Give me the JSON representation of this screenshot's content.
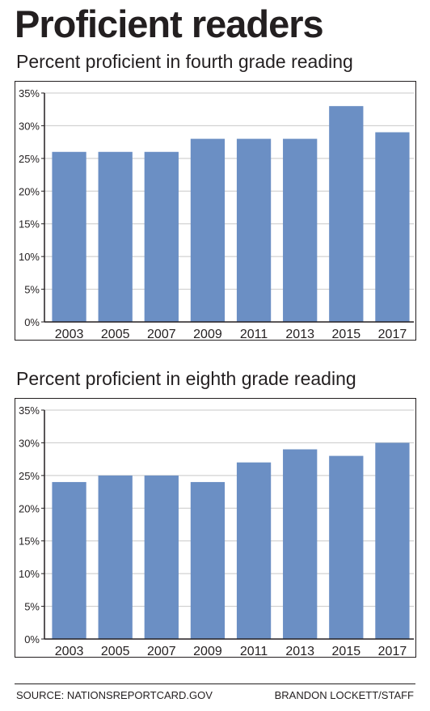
{
  "page": {
    "title": "Proficient readers",
    "source": "SOURCE: NATIONSREPORTCARD.GOV",
    "credit": "BRANDON LOCKETT/STAFF"
  },
  "colors": {
    "bar": "#6b8fc4",
    "axis": "#231f20",
    "grid": "#c8c8c8"
  },
  "chart_data": [
    {
      "type": "bar",
      "title": "Percent proficient in fourth grade reading",
      "categories": [
        "2003",
        "2005",
        "2007",
        "2009",
        "2011",
        "2013",
        "2015",
        "2017"
      ],
      "values": [
        26,
        26,
        26,
        28,
        28,
        28,
        33,
        29
      ],
      "unit": "%",
      "ylim": [
        0,
        35
      ],
      "yticks": [
        0,
        5,
        10,
        15,
        20,
        25,
        30,
        35
      ],
      "grid": true,
      "xlabel": "",
      "ylabel": ""
    },
    {
      "type": "bar",
      "title": "Percent proficient in eighth grade reading",
      "categories": [
        "2003",
        "2005",
        "2007",
        "2009",
        "2011",
        "2013",
        "2015",
        "2017"
      ],
      "values": [
        24,
        25,
        25,
        24,
        27,
        29,
        28,
        30
      ],
      "unit": "%",
      "ylim": [
        0,
        35
      ],
      "yticks": [
        0,
        5,
        10,
        15,
        20,
        25,
        30,
        35
      ],
      "grid": true,
      "xlabel": "",
      "ylabel": ""
    }
  ]
}
